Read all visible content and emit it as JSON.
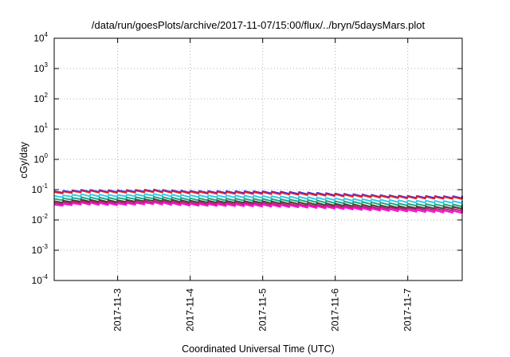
{
  "chart_data": {
    "type": "line",
    "title": "/data/run/goesPlots/archive/2017-11-07/15:00/flux/../bryn/5daysMars.plot",
    "xlabel": "Coordinated Universal Time (UTC)",
    "ylabel": "cGy/day",
    "y_scale": "log",
    "ylim": [
      0.0001,
      10000
    ],
    "xlim": [
      "2017-11-02T03:00",
      "2017-11-07T18:00"
    ],
    "y_ticks": [
      {
        "base": "10",
        "exp": "4",
        "value": 10000
      },
      {
        "base": "10",
        "exp": "3",
        "value": 1000
      },
      {
        "base": "10",
        "exp": "2",
        "value": 100
      },
      {
        "base": "10",
        "exp": "1",
        "value": 10
      },
      {
        "base": "10",
        "exp": "0",
        "value": 1
      },
      {
        "base": "10",
        "exp": "-1",
        "value": 0.1
      },
      {
        "base": "10",
        "exp": "-2",
        "value": 0.01
      },
      {
        "base": "10",
        "exp": "-3",
        "value": 0.001
      },
      {
        "base": "10",
        "exp": "-4",
        "value": 0.0001
      }
    ],
    "x_ticks": [
      {
        "label": "2017-11-3",
        "date": "2017-11-03T00:00"
      },
      {
        "label": "2017-11-4",
        "date": "2017-11-04T00:00"
      },
      {
        "label": "2017-11-5",
        "date": "2017-11-05T00:00"
      },
      {
        "label": "2017-11-6",
        "date": "2017-11-06T00:00"
      },
      {
        "label": "2017-11-7",
        "date": "2017-11-07T00:00"
      }
    ],
    "grid": true,
    "x": [
      "2017-11-02T03:00",
      "2017-11-02T12:00",
      "2017-11-03T00:00",
      "2017-11-03T12:00",
      "2017-11-04T00:00",
      "2017-11-04T12:00",
      "2017-11-05T00:00",
      "2017-11-05T12:00",
      "2017-11-06T00:00",
      "2017-11-06T12:00",
      "2017-11-07T00:00",
      "2017-11-07T18:00"
    ],
    "series": [
      {
        "color": "#2b2bff",
        "values": [
          0.085,
          0.095,
          0.092,
          0.097,
          0.088,
          0.086,
          0.085,
          0.08,
          0.072,
          0.065,
          0.06,
          0.058
        ]
      },
      {
        "color": "#e0202a",
        "values": [
          0.08,
          0.09,
          0.087,
          0.092,
          0.083,
          0.081,
          0.08,
          0.075,
          0.068,
          0.062,
          0.057,
          0.055
        ]
      },
      {
        "color": "#36c9e8",
        "values": [
          0.06,
          0.068,
          0.065,
          0.07,
          0.063,
          0.062,
          0.06,
          0.056,
          0.05,
          0.046,
          0.042,
          0.04
        ]
      },
      {
        "color": "#19a884",
        "values": [
          0.048,
          0.054,
          0.052,
          0.056,
          0.05,
          0.049,
          0.048,
          0.045,
          0.04,
          0.037,
          0.033,
          0.031
        ]
      },
      {
        "color": "#4a3a2e",
        "values": [
          0.04,
          0.045,
          0.043,
          0.047,
          0.042,
          0.041,
          0.04,
          0.037,
          0.033,
          0.03,
          0.027,
          0.026
        ]
      },
      {
        "color": "#b0207a",
        "values": [
          0.035,
          0.04,
          0.038,
          0.041,
          0.037,
          0.036,
          0.035,
          0.032,
          0.029,
          0.026,
          0.024,
          0.022
        ]
      },
      {
        "color": "#ff10d0",
        "values": [
          0.031,
          0.036,
          0.034,
          0.037,
          0.033,
          0.032,
          0.031,
          0.029,
          0.026,
          0.023,
          0.021,
          0.019
        ]
      }
    ]
  }
}
